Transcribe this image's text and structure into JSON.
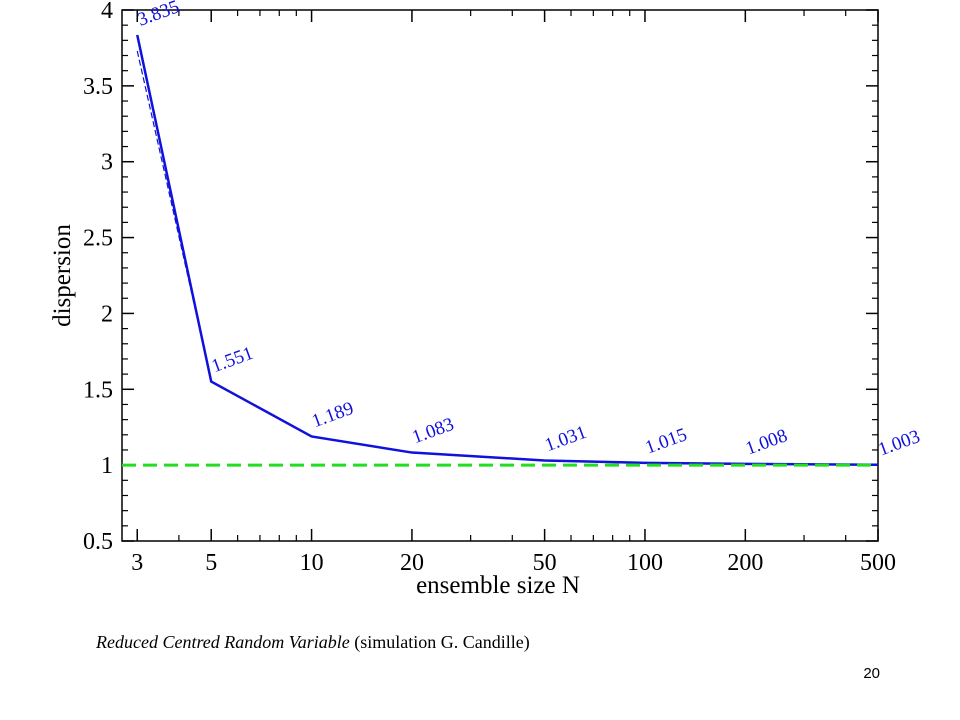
{
  "chart_data": {
    "type": "line",
    "title": "",
    "xlabel": "ensemble size N",
    "ylabel": "dispersion",
    "x_scale": "log",
    "xlim": [
      2.7,
      500
    ],
    "ylim": [
      0.5,
      4
    ],
    "x_ticks": [
      3,
      5,
      10,
      20,
      50,
      100,
      200,
      500
    ],
    "x_tick_labels": [
      "3",
      "5",
      "10",
      "20",
      "50",
      "100",
      "200",
      "500"
    ],
    "y_ticks": [
      0.5,
      1,
      1.5,
      2,
      2.5,
      3,
      3.5,
      4
    ],
    "y_tick_labels": [
      "0.5",
      "1",
      "1.5",
      "2",
      "2.5",
      "3",
      "3.5",
      "4"
    ],
    "grid": false,
    "series": [
      {
        "style": "solid",
        "color": "#1111dd",
        "x": [
          3,
          5,
          10,
          20,
          50,
          100,
          200,
          500
        ],
        "y": [
          3.835,
          1.551,
          1.189,
          1.083,
          1.031,
          1.015,
          1.008,
          1.003
        ],
        "labels": [
          "3.835",
          "1.551",
          "1.189",
          "1.083",
          "1.031",
          "1.015",
          "1.008",
          "1.003"
        ]
      },
      {
        "style": "dashed",
        "color": "#1111dd",
        "x": [
          3,
          5
        ],
        "y": [
          3.73,
          1.56
        ]
      },
      {
        "style": "dashed",
        "color": "#22dd22",
        "x": [
          2.7,
          500
        ],
        "y": [
          1,
          1
        ]
      }
    ]
  },
  "caption": {
    "italic": "Reduced Centred Random Variable",
    "rest": " (simulation G. Candille)"
  },
  "page_number": "20"
}
